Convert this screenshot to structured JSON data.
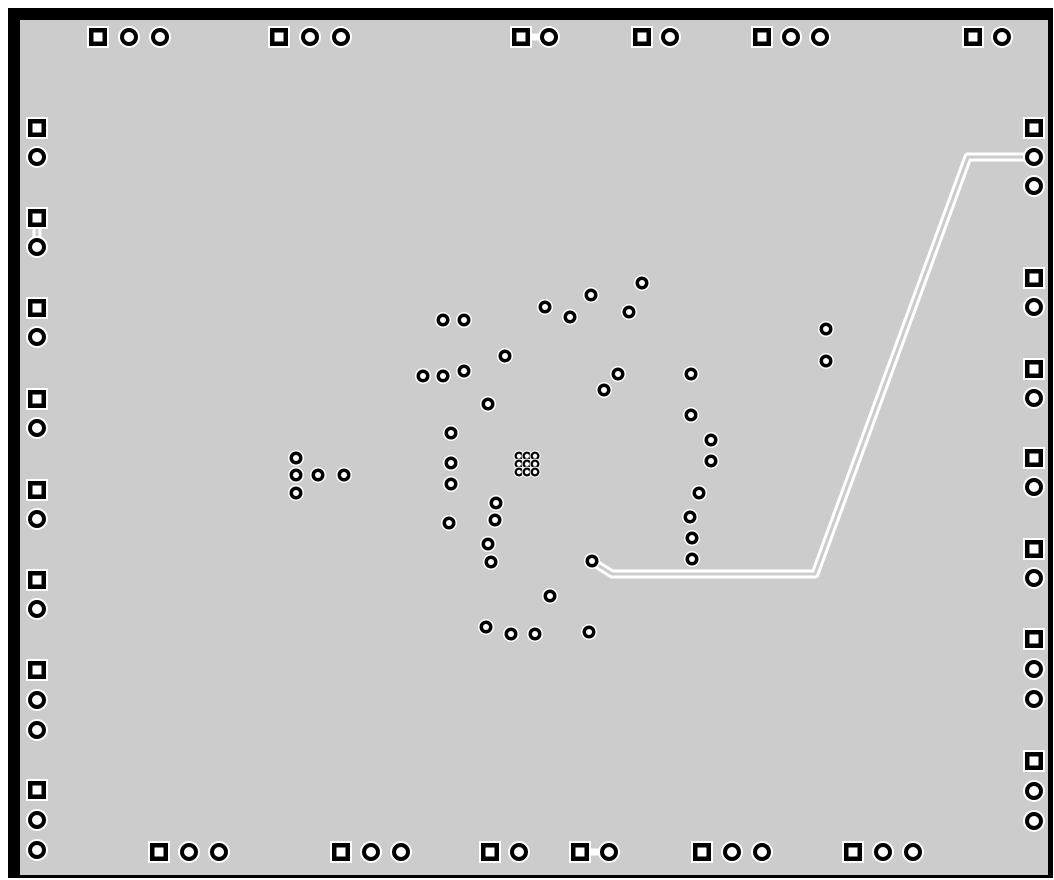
{
  "colors": {
    "copper_plane": "#cccccc",
    "pad_fill": "#000000",
    "clearance": "#ffffff",
    "board_outline": "#000000",
    "background": "#ffffff"
  },
  "headers": [
    {
      "pins": 3
    },
    {
      "pins": 3
    },
    {
      "pins": 2
    },
    {
      "pins": 2
    },
    {
      "pins": 3
    },
    {
      "pins": 2
    },
    {
      "pins": 2
    },
    {
      "pins": 2
    },
    {
      "pins": 2
    },
    {
      "pins": 2
    },
    {
      "pins": 2
    },
    {
      "pins": 2
    },
    {
      "pins": 2
    },
    {
      "pins": 3
    },
    {
      "pins": 3
    },
    {
      "pins": 3
    },
    {
      "pins": 2
    },
    {
      "pins": 2
    },
    {
      "pins": 2
    },
    {
      "pins": 2
    },
    {
      "pins": 2
    },
    {
      "pins": 3
    },
    {
      "pins": 3
    },
    {
      "pins": 3
    },
    {
      "pins": 3
    },
    {
      "pins": 2
    },
    {
      "pins": 2
    },
    {
      "pins": 3
    },
    {
      "pins": 3
    }
  ],
  "via_count": 56,
  "trace_count": 2
}
